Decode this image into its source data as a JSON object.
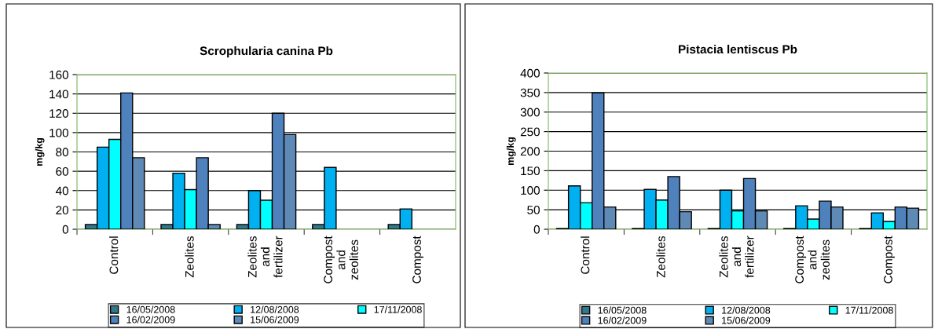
{
  "chart_data": [
    {
      "type": "bar",
      "title": "Scrophularia canina Pb",
      "ylabel": "mg/kg",
      "categories": [
        "Control",
        "Zeolites",
        "Zeolites and fertilizer",
        "Compost and zeolites",
        "Compost"
      ],
      "ylim": [
        0,
        160
      ],
      "yticks": [
        0,
        20,
        40,
        60,
        80,
        100,
        120,
        140,
        160
      ],
      "grid": "y",
      "legend": "bottom",
      "series": [
        {
          "name": "16/05/2008",
          "color": "#31788a",
          "values": [
            5,
            5,
            5,
            5,
            5
          ]
        },
        {
          "name": "12/08/2008",
          "color": "#00b0f0",
          "values": [
            85,
            58,
            40,
            64,
            21
          ]
        },
        {
          "name": "17/11/2008",
          "color": "#00ffff",
          "values": [
            93,
            41,
            30,
            null,
            null
          ]
        },
        {
          "name": "16/02/2009",
          "color": "#4f81bd",
          "values": [
            141,
            74,
            120,
            null,
            null
          ]
        },
        {
          "name": "15/06/2009",
          "color": "#5f8ab5",
          "values": [
            74,
            5,
            98,
            null,
            null
          ]
        }
      ]
    },
    {
      "type": "bar",
      "title": "Pistacia lentiscus Pb",
      "ylabel": "mg/kg",
      "categories": [
        "Control",
        "Zeolites",
        "Zeolites and fertilizer",
        "Compost and zeolites",
        "Compost"
      ],
      "ylim": [
        0,
        400
      ],
      "yticks": [
        0,
        50,
        100,
        150,
        200,
        250,
        300,
        350,
        400
      ],
      "grid": "y",
      "legend": "bottom",
      "series": [
        {
          "name": "16/05/2008",
          "color": "#31788a",
          "values": [
            2,
            2,
            2,
            2,
            2
          ]
        },
        {
          "name": "12/08/2008",
          "color": "#00b0f0",
          "values": [
            111,
            102,
            100,
            60,
            42
          ]
        },
        {
          "name": "17/11/2008",
          "color": "#00ffff",
          "values": [
            68,
            75,
            47,
            26,
            20
          ]
        },
        {
          "name": "16/02/2009",
          "color": "#4f81bd",
          "values": [
            349,
            135,
            130,
            72,
            57
          ]
        },
        {
          "name": "15/06/2009",
          "color": "#5f8ab5",
          "values": [
            57,
            45,
            47,
            57,
            54
          ]
        }
      ]
    }
  ]
}
